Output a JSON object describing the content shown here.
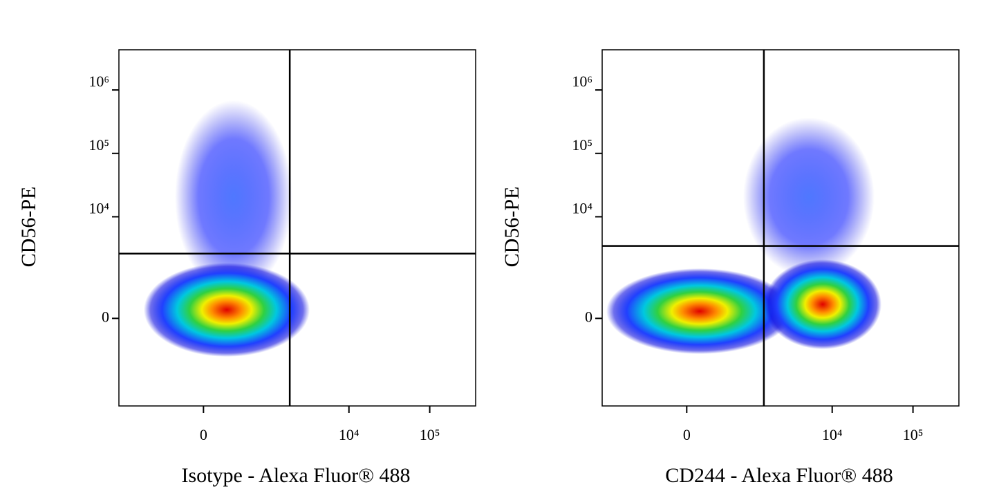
{
  "chart_data": [
    {
      "type": "scatter",
      "xlabel": "Isotype - Alexa Fluor® 488",
      "ylabel": "CD56-PE",
      "xscale": "biexponential",
      "yscale": "biexponential",
      "xlim": [
        -1750,
        370000
      ],
      "ylim": [
        -6000,
        4300000
      ],
      "xticks": [
        0,
        {
          "value": 10000,
          "label": "10⁴"
        },
        {
          "value": 100000,
          "label": "10⁵"
        }
      ],
      "yticks": [
        0,
        {
          "value": 10000,
          "label": "10⁴"
        },
        {
          "value": 100000,
          "label": "10⁵"
        },
        {
          "value": 1000000,
          "label": "10⁶"
        }
      ],
      "quadrant_gate": {
        "x": 1840,
        "y": 2600
      }
    },
    {
      "type": "scatter",
      "xlabel": "CD244 - Alexa Fluor® 488",
      "ylabel": "CD56-PE",
      "xscale": "biexponential",
      "yscale": "biexponential",
      "xlim": [
        -1750,
        370000
      ],
      "ylim": [
        -6000,
        4300000
      ],
      "xticks": [
        0,
        {
          "value": 10000,
          "label": "10⁴"
        },
        {
          "value": 100000,
          "label": "10⁵"
        }
      ],
      "yticks": [
        0,
        {
          "value": 10000,
          "label": "10⁴"
        },
        {
          "value": 100000,
          "label": "10⁵"
        },
        {
          "value": 1000000,
          "label": "10⁶"
        }
      ],
      "quadrant_gate": {
        "x": 1410,
        "y": 3450
      }
    }
  ]
}
